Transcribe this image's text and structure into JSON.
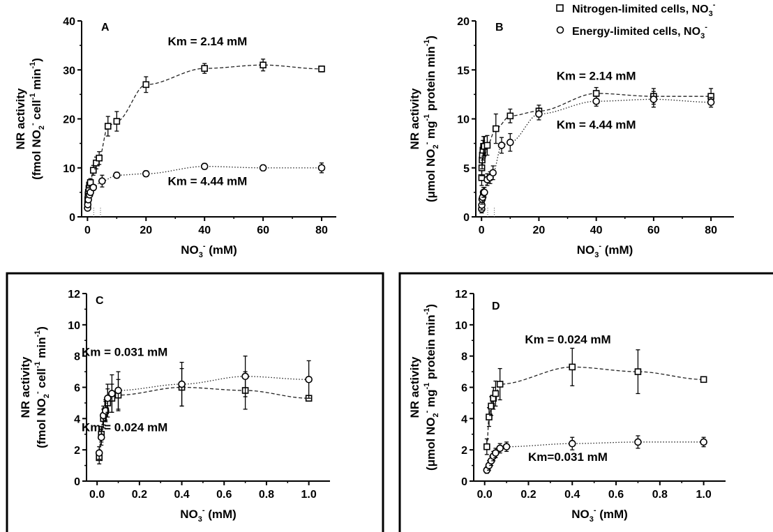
{
  "legend": {
    "entries": [
      {
        "marker": "square",
        "label": "Nitrogen-limited cells, NO",
        "sub": "3",
        "sup": "-"
      },
      {
        "marker": "circle",
        "label": "Energy-limited cells, NO",
        "sub": "3",
        "sup": "-"
      }
    ]
  },
  "chart_data": [
    {
      "panel": "A",
      "type": "scatter",
      "ylabel": {
        "line1": "NR activity",
        "line2_a": "(fmol NO",
        "line2_sub": "2",
        "line2_sup": "-",
        "line2_b": " cell",
        "line2_sup2": "-1",
        "line2_c": " min",
        "line2_sup3": "-1",
        "line2_d": ")"
      },
      "xlabel": {
        "a": "NO",
        "sub": "3",
        "sup": "-",
        "b": " (mM)"
      },
      "xlim": [
        -2,
        85
      ],
      "ylim": [
        0,
        40
      ],
      "xticks": [
        0,
        20,
        40,
        60,
        80
      ],
      "yticks": [
        0,
        10,
        20,
        30,
        40
      ],
      "tick_decimals": 0,
      "series": [
        {
          "marker": "square",
          "curve": "dashed",
          "x": [
            0.05,
            0.1,
            0.2,
            0.3,
            0.5,
            0.7,
            1,
            2,
            3,
            4,
            7,
            10,
            20,
            40,
            60,
            80
          ],
          "y": [
            2.5,
            3.5,
            4.5,
            5.0,
            5.8,
            6.5,
            7.0,
            9.5,
            11,
            12,
            18.5,
            19.5,
            27,
            30.3,
            31,
            30.2
          ],
          "err": [
            0.5,
            0.6,
            0.6,
            0.6,
            0.6,
            0.6,
            0.8,
            1.0,
            1.2,
            1.3,
            2.0,
            2.0,
            1.6,
            1.0,
            1.2,
            0.6
          ],
          "fit": {
            "vmax": 37,
            "km": 2.14,
            "k": 0.0004
          }
        },
        {
          "marker": "circle",
          "curve": "dotted",
          "x": [
            0.05,
            0.1,
            0.3,
            0.7,
            1,
            2,
            5,
            10,
            20,
            40,
            60,
            80
          ],
          "y": [
            1.8,
            2.5,
            3.5,
            4.5,
            5.0,
            6.0,
            7.3,
            8.5,
            8.8,
            10.3,
            10.0,
            10.0
          ],
          "err": [
            0.4,
            0.4,
            0.5,
            0.5,
            0.5,
            0.6,
            1.2,
            0.6,
            0.6,
            0.6,
            0.6,
            1.0
          ],
          "fit": {
            "vmax": 10.4,
            "km": 4.44,
            "k": 0
          }
        }
      ],
      "annotations": [
        {
          "text": "Km = 2.14 mM",
          "x": 41,
          "y": 35
        },
        {
          "text": "Km = 4.44 mM",
          "x": 41,
          "y": 6.5
        }
      ],
      "km_lines": [
        2.14,
        4.44
      ]
    },
    {
      "panel": "B",
      "type": "scatter",
      "ylabel": {
        "line1": "NR activity",
        "line2_a": "(μmol NO",
        "line2_sub": "2",
        "line2_sup": "-",
        "line2_b": " mg",
        "line2_sup2": "-1",
        "line2_c": " protein min",
        "line2_sup3": "-1",
        "line2_d": ")"
      },
      "xlabel": {
        "a": "NO",
        "sub": "3",
        "sup": "-",
        "b": " (mM)"
      },
      "xlim": [
        -2,
        88
      ],
      "ylim": [
        0,
        20
      ],
      "xticks": [
        0,
        20,
        40,
        60,
        80
      ],
      "yticks": [
        0,
        5,
        10,
        15,
        20
      ],
      "tick_decimals": 0,
      "series": [
        {
          "marker": "square",
          "curve": "dashed",
          "x": [
            0.05,
            0.1,
            0.2,
            0.3,
            0.5,
            0.7,
            1,
            2,
            5,
            10,
            20,
            40,
            60,
            80
          ],
          "y": [
            4.0,
            5.0,
            5.8,
            6.3,
            6.8,
            7.2,
            7.2,
            7.3,
            9.0,
            10.3,
            10.8,
            12.6,
            12.3,
            12.3
          ],
          "err": [
            0.8,
            0.8,
            0.9,
            1.0,
            1.0,
            1.0,
            1.0,
            1.0,
            1.5,
            0.7,
            0.6,
            0.6,
            0.8,
            0.8
          ],
          "fit": {
            "vmax": 15.5,
            "km": 2.14,
            "k": 0.0025
          }
        },
        {
          "marker": "circle",
          "curve": "dotted",
          "x": [
            0.05,
            0.1,
            0.2,
            0.4,
            0.7,
            1,
            2,
            3,
            4,
            7,
            10,
            20,
            40,
            60,
            80
          ],
          "y": [
            0.8,
            1.2,
            1.8,
            2.0,
            2.5,
            2.5,
            3.8,
            4.0,
            4.5,
            7.3,
            7.6,
            10.5,
            11.8,
            12.0,
            11.7
          ],
          "err": [
            0.4,
            0.5,
            0.5,
            0.5,
            0.5,
            0.5,
            0.6,
            0.6,
            0.7,
            0.8,
            0.9,
            0.6,
            0.5,
            0.8,
            0.5
          ],
          "fit": {
            "vmax": 15,
            "km": 4.44,
            "k": 0.0023
          }
        }
      ],
      "annotations": [
        {
          "text": "Km = 2.14 mM",
          "x": 40,
          "y": 14
        },
        {
          "text": "Km = 4.44 mM",
          "x": 40,
          "y": 9
        }
      ],
      "km_lines": [
        2.14,
        4.44
      ]
    },
    {
      "panel": "C",
      "type": "scatter",
      "ylabel": {
        "line1": "NR activity",
        "line2_a": "(fmol NO",
        "line2_sub": "2",
        "line2_sup": "-",
        "line2_b": " cell",
        "line2_sup2": "-1",
        "line2_c": " min",
        "line2_sup3": "-1",
        "line2_d": ")"
      },
      "xlabel": {
        "a": "NO",
        "sub": "3",
        "sup": "-",
        "b": " (mM)"
      },
      "xlim": [
        -0.05,
        1.1
      ],
      "ylim": [
        0,
        12
      ],
      "xticks": [
        0,
        0.2,
        0.4,
        0.6,
        0.8,
        1.0
      ],
      "yticks": [
        0,
        2,
        4,
        6,
        8,
        10,
        12
      ],
      "tick_decimals": 1,
      "series": [
        {
          "marker": "square",
          "curve": "dashed",
          "x": [
            0.01,
            0.02,
            0.03,
            0.04,
            0.05,
            0.07,
            0.1,
            0.4,
            0.7,
            1.0
          ],
          "y": [
            1.5,
            3.0,
            4.0,
            4.5,
            5.0,
            5.3,
            5.5,
            6.0,
            5.8,
            5.3
          ],
          "err": [
            0.4,
            0.5,
            0.6,
            0.7,
            0.9,
            0.9,
            1.0,
            1.2,
            1.2,
            0.15
          ],
          "fit": {
            "vmax": 7.2,
            "km": 0.024,
            "k": 0.2
          }
        },
        {
          "marker": "circle",
          "curve": "dotted",
          "x": [
            0.01,
            0.02,
            0.03,
            0.04,
            0.05,
            0.07,
            0.1,
            0.4,
            0.7,
            1.0
          ],
          "y": [
            1.8,
            2.8,
            4.2,
            4.5,
            5.3,
            5.6,
            5.8,
            6.2,
            6.7,
            6.5
          ],
          "err": [
            0.4,
            0.5,
            0.6,
            0.6,
            0.9,
            1.2,
            1.2,
            1.4,
            1.3,
            1.2
          ],
          "fit": {
            "vmax": 7.8,
            "km": 0.031,
            "k": 0.11
          }
        }
      ],
      "annotations": [
        {
          "text": "Km = 0.031 mM",
          "x": 0.13,
          "y": 8.0
        },
        {
          "text": "Km = 0.024 mM",
          "x": 0.13,
          "y": 3.2
        }
      ],
      "km_lines": []
    },
    {
      "panel": "D",
      "type": "scatter",
      "ylabel": {
        "line1": "NR activity",
        "line2_a": "(μmol NO",
        "line2_sub": "2",
        "line2_sup": "-",
        "line2_b": " mg",
        "line2_sup2": "-1",
        "line2_c": " protein min",
        "line2_sup3": "-1",
        "line2_d": ")"
      },
      "xlabel": {
        "a": "NO",
        "sub": "3",
        "sup": "-",
        "b": " (mM)"
      },
      "xlim": [
        -0.05,
        1.1
      ],
      "ylim": [
        0,
        12
      ],
      "xticks": [
        0,
        0.2,
        0.4,
        0.6,
        0.8,
        1.0
      ],
      "yticks": [
        0,
        2,
        4,
        6,
        8,
        10,
        12
      ],
      "tick_decimals": 1,
      "series": [
        {
          "marker": "square",
          "curve": "dashed",
          "x": [
            0.01,
            0.02,
            0.03,
            0.04,
            0.05,
            0.07,
            0.4,
            0.7,
            1.0
          ],
          "y": [
            2.2,
            4.1,
            4.8,
            5.3,
            5.6,
            6.2,
            7.3,
            7.0,
            6.5
          ],
          "err": [
            0.5,
            0.6,
            0.6,
            0.7,
            0.8,
            1.0,
            1.2,
            1.4,
            0.15
          ],
          "fit": {
            "vmax": 8.3,
            "km": 0.024,
            "k": 0.14
          }
        },
        {
          "marker": "circle",
          "curve": "dotted",
          "x": [
            0.01,
            0.02,
            0.03,
            0.04,
            0.05,
            0.07,
            0.1,
            0.4,
            0.7,
            1.0
          ],
          "y": [
            0.7,
            1.0,
            1.3,
            1.6,
            1.8,
            2.1,
            2.2,
            2.4,
            2.5,
            2.5
          ],
          "err": [
            0.2,
            0.3,
            0.3,
            0.3,
            0.3,
            0.3,
            0.3,
            0.4,
            0.4,
            0.3
          ],
          "fit": {
            "vmax": 2.7,
            "km": 0.031,
            "k": 0.0
          }
        }
      ],
      "annotations": [
        {
          "text": "Km = 0.024 mM",
          "x": 0.38,
          "y": 8.8
        },
        {
          "text": "Km=0.031 mM",
          "x": 0.38,
          "y": 1.3
        }
      ],
      "km_lines": []
    }
  ]
}
